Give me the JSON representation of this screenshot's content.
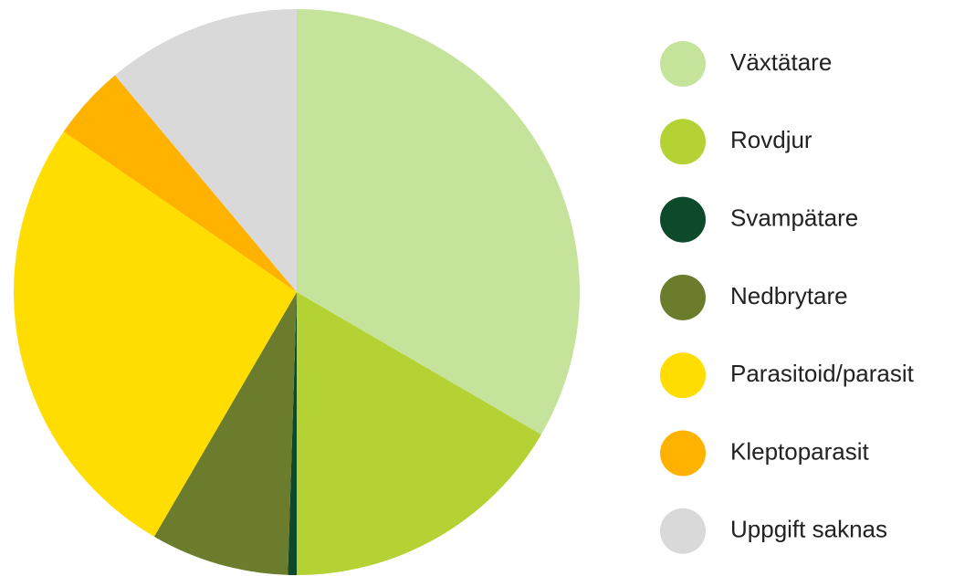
{
  "chart_data": {
    "type": "pie",
    "categories": [
      "Växtätare",
      "Rovdjur",
      "Svampätare",
      "Nedbrytare",
      "Parasitoid/parasit",
      "Kleptoparasit",
      "Uppgift saknas"
    ],
    "values": [
      33.4,
      16.6,
      0.5,
      7.9,
      26.2,
      4.3,
      11.1
    ],
    "colors": [
      "#c6e39c",
      "#b4d234",
      "#0c4a2b",
      "#6b7d2c",
      "#ffdd00",
      "#ffb300",
      "#d9d9da"
    ],
    "legend": "right"
  }
}
